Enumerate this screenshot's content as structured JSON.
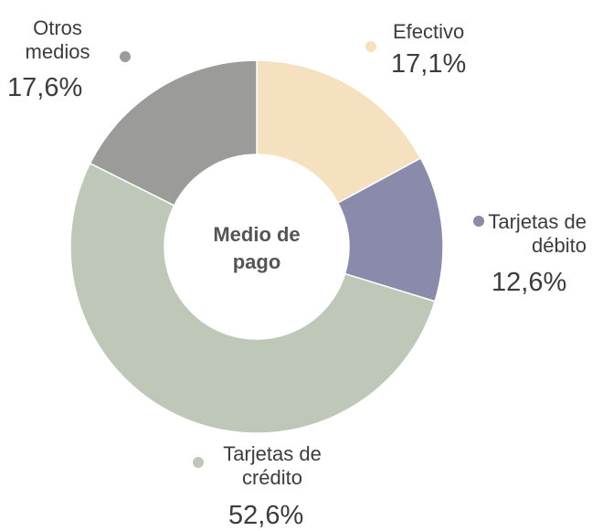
{
  "chart_data": {
    "type": "donut",
    "center_label": "Medio de pago",
    "categories": [
      "Efectivo",
      "Tarjetas de débito",
      "Tarjetas de crédito",
      "Otros medios"
    ],
    "values": [
      17.1,
      12.6,
      52.6,
      17.6
    ],
    "value_labels": [
      "17,1%",
      "12,6%",
      "52,6%",
      "17,6%"
    ],
    "colors": [
      "#f5e0bf",
      "#8a8aab",
      "#bfc7b9",
      "#9b9b99"
    ]
  }
}
